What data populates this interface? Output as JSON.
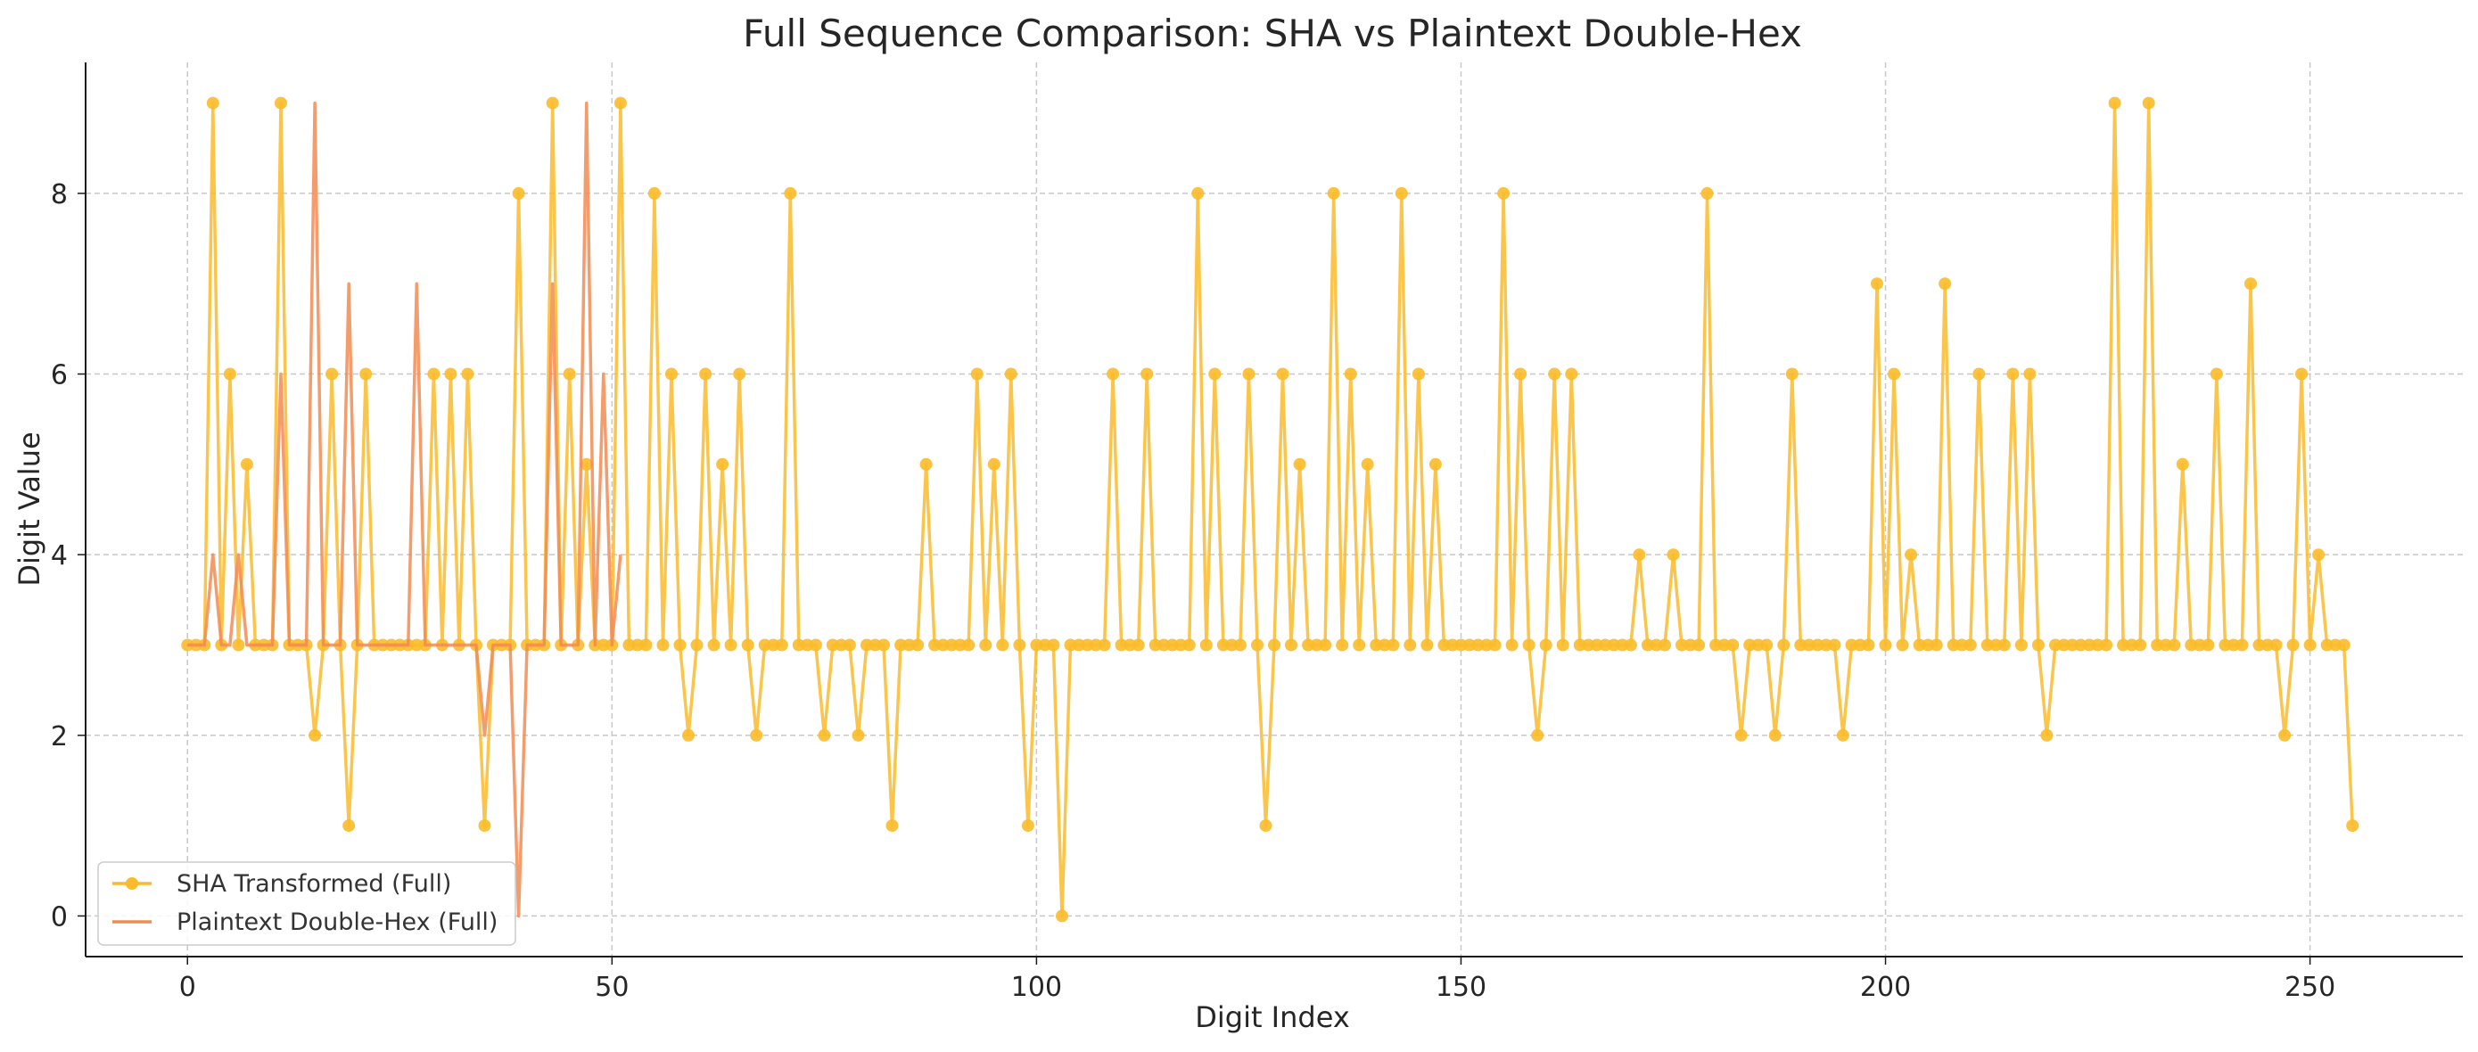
{
  "chart_data": {
    "type": "line",
    "title": "Full Sequence Comparison: SHA vs Plaintext Double-Hex",
    "xlabel": "Digit Index",
    "ylabel": "Digit Value",
    "xlim": [
      -12,
      268
    ],
    "ylim": [
      -0.45,
      9.45
    ],
    "xticks": [
      0,
      50,
      100,
      150,
      200,
      250
    ],
    "yticks": [
      0,
      2,
      4,
      6,
      8
    ],
    "grid": true,
    "legend_position": "lower-left",
    "series": [
      {
        "name": "SHA Transformed (Full)",
        "color": "#f9bb2a",
        "marker": "circle",
        "x_start": 0,
        "values": [
          3,
          3,
          3,
          9,
          3,
          6,
          3,
          5,
          3,
          3,
          3,
          9,
          3,
          3,
          3,
          2,
          3,
          6,
          3,
          1,
          3,
          6,
          3,
          3,
          3,
          3,
          3,
          3,
          3,
          6,
          3,
          6,
          3,
          6,
          3,
          1,
          3,
          3,
          3,
          8,
          3,
          3,
          3,
          9,
          3,
          6,
          3,
          5,
          3,
          3,
          3,
          9,
          3,
          3,
          3,
          8,
          3,
          6,
          3,
          2,
          3,
          6,
          3,
          5,
          3,
          6,
          3,
          2,
          3,
          3,
          3,
          8,
          3,
          3,
          3,
          2,
          3,
          3,
          3,
          2,
          3,
          3,
          3,
          1,
          3,
          3,
          3,
          5,
          3,
          3,
          3,
          3,
          3,
          6,
          3,
          5,
          3,
          6,
          3,
          1,
          3,
          3,
          3,
          0,
          3,
          3,
          3,
          3,
          3,
          6,
          3,
          3,
          3,
          6,
          3,
          3,
          3,
          3,
          3,
          8,
          3,
          6,
          3,
          3,
          3,
          6,
          3,
          1,
          3,
          6,
          3,
          5,
          3,
          3,
          3,
          8,
          3,
          6,
          3,
          5,
          3,
          3,
          3,
          8,
          3,
          6,
          3,
          5,
          3,
          3,
          3,
          3,
          3,
          3,
          3,
          8,
          3,
          6,
          3,
          2,
          3,
          6,
          3,
          6,
          3,
          3,
          3,
          3,
          3,
          3,
          3,
          4,
          3,
          3,
          3,
          4,
          3,
          3,
          3,
          8,
          3,
          3,
          3,
          2,
          3,
          3,
          3,
          2,
          3,
          6,
          3,
          3,
          3,
          3,
          3,
          2,
          3,
          3,
          3,
          7,
          3,
          6,
          3,
          4,
          3,
          3,
          3,
          7,
          3,
          3,
          3,
          6,
          3,
          3,
          3,
          6,
          3,
          6,
          3,
          2,
          3,
          3,
          3,
          3,
          3,
          3,
          3,
          9,
          3,
          3,
          3,
          9,
          3,
          3,
          3,
          5,
          3,
          3,
          3,
          6,
          3,
          3,
          3,
          7,
          3,
          3,
          3,
          2,
          3,
          6,
          3,
          4,
          3,
          3,
          3,
          1
        ]
      },
      {
        "name": "Plaintext Double-Hex (Full)",
        "color": "#f28b52",
        "marker": "none",
        "x_start": 0,
        "values": [
          3,
          3,
          3,
          4,
          3,
          3,
          4,
          3,
          3,
          3,
          3,
          6,
          3,
          3,
          3,
          9,
          3,
          3,
          3,
          7,
          3,
          3,
          3,
          3,
          3,
          3,
          3,
          7,
          3,
          3,
          3,
          3,
          3,
          3,
          3,
          2,
          3,
          3,
          3,
          0,
          3,
          3,
          3,
          7,
          3,
          3,
          3,
          9,
          3,
          6,
          3,
          4
        ]
      }
    ]
  }
}
